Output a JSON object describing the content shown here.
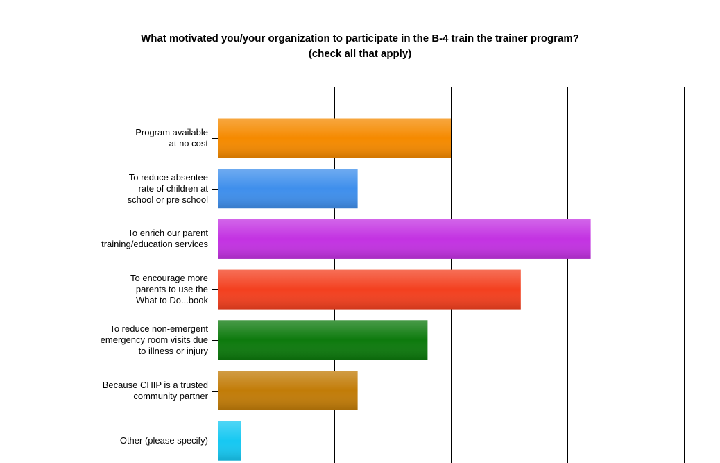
{
  "chart_data": {
    "type": "barh",
    "title": "What motivated you/your organization to participate in the B-4 train the trainer program?",
    "subtitle": "(check all that apply)",
    "categories": [
      "Program available\nat no cost",
      "To reduce absentee\nrate of children at\nschool or pre school",
      "To enrich our parent\ntraining/education services",
      "To encourage more\nparents to use the\nWhat to Do...book",
      "To reduce non-emergent\nemergency room visits due\nto illness or injury",
      "Because CHIP is a trusted\ncommunity partner",
      "Other (please specify)"
    ],
    "values": [
      10,
      6,
      16,
      13,
      9,
      6,
      1
    ],
    "colors": [
      "#f58a00",
      "#3f8fec",
      "#c332e2",
      "#f3401f",
      "#0d7a0d",
      "#c27c08",
      "#16c8f2"
    ],
    "xlim": [
      0,
      20
    ],
    "xticks": [
      0,
      5,
      10,
      15,
      20
    ],
    "grid": true
  }
}
